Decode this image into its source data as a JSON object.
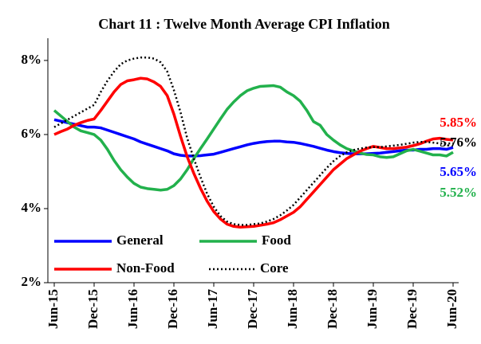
{
  "chart_data": {
    "type": "line",
    "title": "Chart 11 : Twelve Month Average CPI  Inflation",
    "categories": [
      "Jun-15",
      null,
      null,
      null,
      null,
      null,
      "Dec-15",
      null,
      null,
      null,
      null,
      null,
      "Jun-16",
      null,
      null,
      null,
      null,
      null,
      "Dec-16",
      null,
      null,
      null,
      null,
      null,
      "Jun-17",
      null,
      null,
      null,
      null,
      null,
      "Dec-17",
      null,
      null,
      null,
      null,
      null,
      "Jun-18",
      null,
      null,
      null,
      null,
      null,
      "Dec-18",
      null,
      null,
      null,
      null,
      null,
      "Jun-19",
      null,
      null,
      null,
      null,
      null,
      "Dec-19",
      null,
      null,
      null,
      null,
      null,
      "Jun-20"
    ],
    "ylim": [
      2,
      8.6
    ],
    "yticks": [
      {
        "value": 2,
        "label": "2%"
      },
      {
        "value": 4,
        "label": "4%"
      },
      {
        "value": 6,
        "label": "6%"
      },
      {
        "value": 8,
        "label": "8%"
      }
    ],
    "grid": false,
    "legend": "lower left",
    "series": [
      {
        "name": "General",
        "color": "#0000ff",
        "style": "solid",
        "values": [
          6.4,
          6.36,
          6.32,
          6.28,
          6.24,
          6.2,
          6.2,
          6.18,
          6.12,
          6.06,
          6.0,
          5.94,
          5.88,
          5.8,
          5.74,
          5.68,
          5.62,
          5.56,
          5.48,
          5.44,
          5.42,
          5.42,
          5.43,
          5.45,
          5.47,
          5.52,
          5.57,
          5.62,
          5.67,
          5.72,
          5.76,
          5.79,
          5.81,
          5.82,
          5.82,
          5.8,
          5.79,
          5.76,
          5.72,
          5.68,
          5.63,
          5.58,
          5.54,
          5.51,
          5.49,
          5.48,
          5.48,
          5.48,
          5.49,
          5.5,
          5.52,
          5.54,
          5.56,
          5.58,
          5.58,
          5.6,
          5.6,
          5.62,
          5.62,
          5.6,
          5.65
        ],
        "value_labels": [
          null,
          null,
          null,
          null,
          null,
          null,
          null,
          null,
          null,
          null,
          null,
          null,
          null,
          null,
          null,
          null,
          null,
          null,
          null,
          null,
          null,
          null,
          null,
          null,
          null,
          null,
          null,
          null,
          null,
          null,
          null,
          null,
          null,
          null,
          null,
          null,
          null,
          null,
          null,
          null,
          null,
          null,
          null,
          null,
          null,
          null,
          null,
          null,
          null,
          null,
          null,
          null,
          null,
          null,
          null,
          null,
          null,
          null,
          null,
          null,
          "5.65%"
        ]
      },
      {
        "name": "Food",
        "color": "#22b14c",
        "style": "solid",
        "values": [
          6.65,
          6.5,
          6.35,
          6.2,
          6.1,
          6.05,
          6.0,
          5.85,
          5.6,
          5.3,
          5.05,
          4.85,
          4.68,
          4.58,
          4.54,
          4.52,
          4.5,
          4.52,
          4.62,
          4.8,
          5.05,
          5.35,
          5.62,
          5.88,
          6.15,
          6.42,
          6.68,
          6.88,
          7.05,
          7.18,
          7.25,
          7.3,
          7.31,
          7.32,
          7.28,
          7.15,
          7.05,
          6.9,
          6.65,
          6.35,
          6.25,
          6.0,
          5.85,
          5.72,
          5.62,
          5.56,
          5.5,
          5.46,
          5.45,
          5.4,
          5.38,
          5.4,
          5.48,
          5.56,
          5.6,
          5.55,
          5.5,
          5.45,
          5.45,
          5.42,
          5.52
        ],
        "value_labels": [
          null,
          null,
          null,
          null,
          null,
          null,
          null,
          null,
          null,
          null,
          null,
          null,
          null,
          null,
          null,
          null,
          null,
          null,
          null,
          null,
          null,
          null,
          null,
          null,
          null,
          null,
          null,
          null,
          null,
          null,
          null,
          null,
          null,
          null,
          null,
          null,
          null,
          null,
          null,
          null,
          null,
          null,
          null,
          null,
          null,
          null,
          null,
          null,
          null,
          null,
          null,
          null,
          null,
          null,
          null,
          null,
          null,
          null,
          null,
          null,
          "5.52%"
        ]
      },
      {
        "name": "Non-Food",
        "color": "#ff0000",
        "style": "solid",
        "values": [
          6.0,
          6.08,
          6.15,
          6.25,
          6.32,
          6.38,
          6.42,
          6.65,
          6.9,
          7.15,
          7.35,
          7.45,
          7.48,
          7.52,
          7.5,
          7.42,
          7.3,
          7.05,
          6.55,
          5.95,
          5.4,
          4.95,
          4.55,
          4.2,
          3.92,
          3.72,
          3.58,
          3.52,
          3.5,
          3.51,
          3.52,
          3.55,
          3.58,
          3.62,
          3.7,
          3.8,
          3.9,
          4.05,
          4.25,
          4.45,
          4.65,
          4.85,
          5.05,
          5.2,
          5.35,
          5.45,
          5.55,
          5.62,
          5.68,
          5.65,
          5.62,
          5.62,
          5.64,
          5.66,
          5.7,
          5.75,
          5.82,
          5.88,
          5.9,
          5.87,
          5.85
        ],
        "value_labels": [
          null,
          null,
          null,
          null,
          null,
          null,
          null,
          null,
          null,
          null,
          null,
          null,
          null,
          null,
          null,
          null,
          null,
          null,
          null,
          null,
          null,
          null,
          null,
          null,
          null,
          null,
          null,
          null,
          null,
          null,
          null,
          null,
          null,
          null,
          null,
          null,
          null,
          null,
          null,
          null,
          null,
          null,
          null,
          null,
          null,
          null,
          null,
          null,
          null,
          null,
          null,
          null,
          null,
          null,
          null,
          null,
          null,
          null,
          null,
          null,
          "5.85%"
        ]
      },
      {
        "name": "Core",
        "color": "#000000",
        "style": "dotted",
        "values": [
          6.2,
          6.3,
          6.4,
          6.5,
          6.6,
          6.7,
          6.8,
          7.15,
          7.45,
          7.7,
          7.9,
          8.0,
          8.05,
          8.08,
          8.08,
          8.05,
          7.95,
          7.7,
          7.2,
          6.6,
          5.9,
          5.35,
          4.85,
          4.4,
          4.05,
          3.8,
          3.65,
          3.58,
          3.56,
          3.56,
          3.58,
          3.6,
          3.65,
          3.72,
          3.82,
          3.95,
          4.1,
          4.3,
          4.5,
          4.7,
          4.9,
          5.1,
          5.28,
          5.42,
          5.52,
          5.58,
          5.62,
          5.65,
          5.66,
          5.66,
          5.68,
          5.7,
          5.72,
          5.75,
          5.78,
          5.8,
          5.8,
          5.78,
          5.76,
          5.76,
          5.76
        ],
        "value_labels": [
          null,
          null,
          null,
          null,
          null,
          null,
          null,
          null,
          null,
          null,
          null,
          null,
          null,
          null,
          null,
          null,
          null,
          null,
          null,
          null,
          null,
          null,
          null,
          null,
          null,
          null,
          null,
          null,
          null,
          null,
          null,
          null,
          null,
          null,
          null,
          null,
          null,
          null,
          null,
          null,
          null,
          null,
          null,
          null,
          null,
          null,
          null,
          null,
          null,
          null,
          null,
          null,
          null,
          null,
          null,
          null,
          null,
          null,
          null,
          null,
          "5.76%"
        ]
      }
    ]
  }
}
